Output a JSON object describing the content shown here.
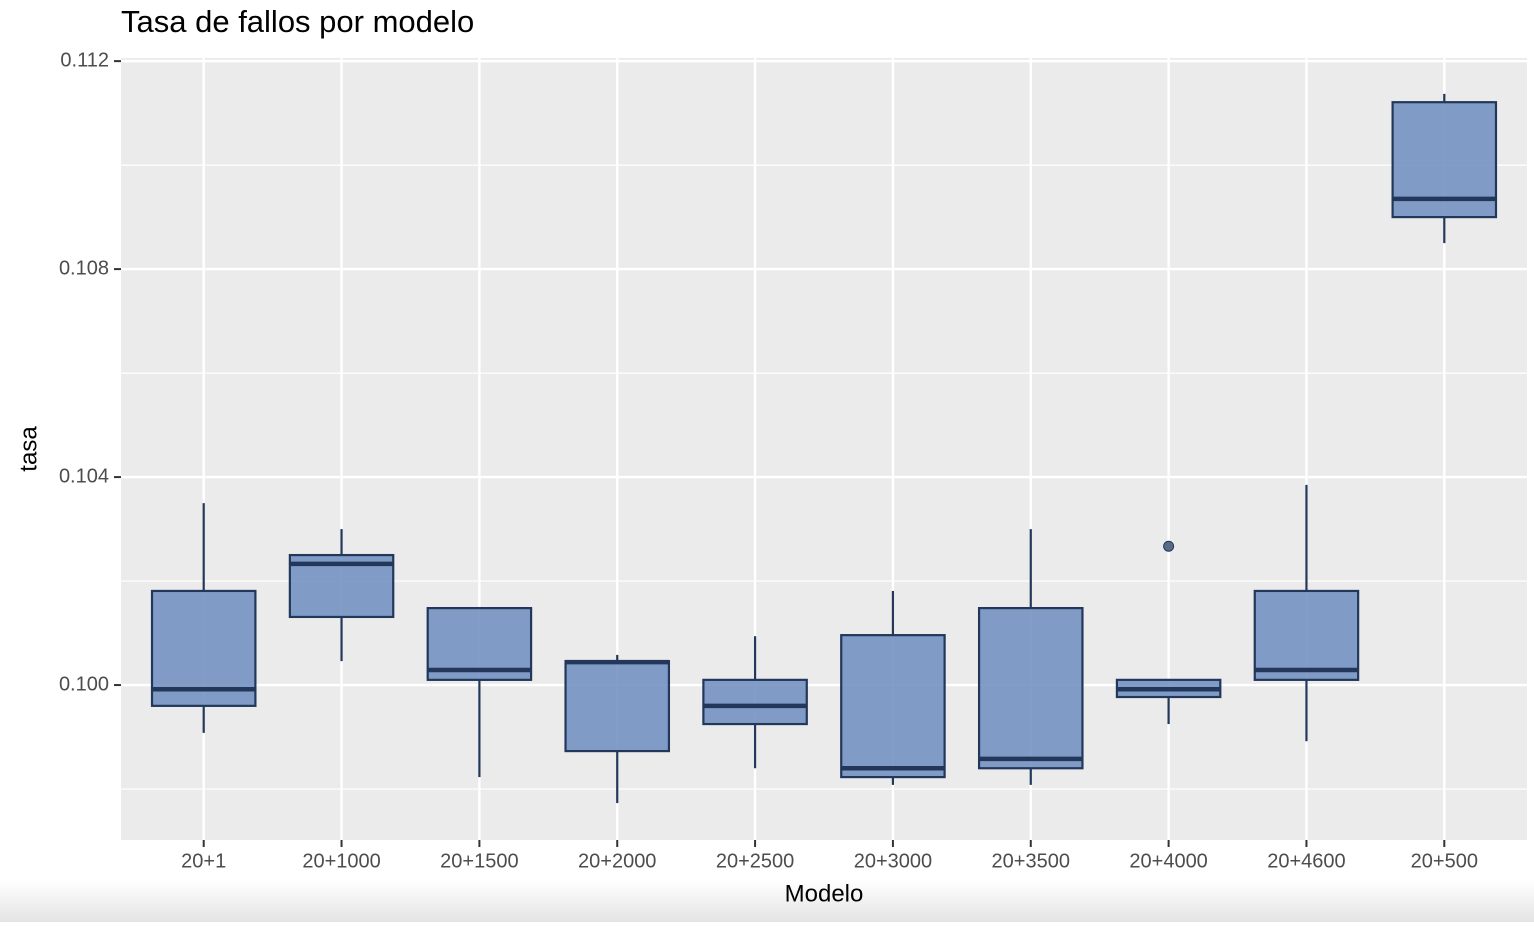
{
  "chart_data": {
    "type": "boxplot",
    "title": "Tasa de fallos por modelo",
    "x_label": "Modelo",
    "y_label": "tasa",
    "categories": [
      "20+1",
      "20+1000",
      "20+1500",
      "20+2000",
      "20+2500",
      "20+3000",
      "20+3500",
      "20+4000",
      "20+4600",
      "20+500"
    ],
    "min": [
      0.09908,
      0.10046,
      0.09823,
      0.09773,
      0.0984,
      0.09808,
      0.09808,
      0.09925,
      0.09892,
      0.1085
    ],
    "q1": [
      0.0996,
      0.10131,
      0.1001,
      0.09873,
      0.09925,
      0.09823,
      0.0984,
      0.09977,
      0.1001,
      0.109
    ],
    "median": [
      0.09992,
      0.10233,
      0.10029,
      0.10044,
      0.0996,
      0.0984,
      0.09858,
      0.09992,
      0.10029,
      0.10935
    ],
    "q3": [
      0.10181,
      0.1025,
      0.10148,
      0.10046,
      0.1001,
      0.10096,
      0.10148,
      0.1001,
      0.10181,
      0.11121
    ],
    "max": [
      0.1035,
      0.103,
      0.10148,
      0.10058,
      0.10094,
      0.10181,
      0.103,
      0.1001,
      0.10385,
      0.11137
    ],
    "outliers": [
      [],
      [],
      [],
      [],
      [],
      [],
      [],
      [
        0.10267
      ],
      [],
      []
    ],
    "fill_color": "#7191c0",
    "line_color": "#22375a",
    "ylim": [
      0.09702,
      0.11206
    ],
    "yticks": [
      {
        "value": 0.1,
        "label": "0.100"
      },
      0.104,
      0.108,
      0.112
    ],
    "y_minor_grid": [
      0.098,
      0.102,
      0.106,
      0.11
    ],
    "grid": true
  }
}
